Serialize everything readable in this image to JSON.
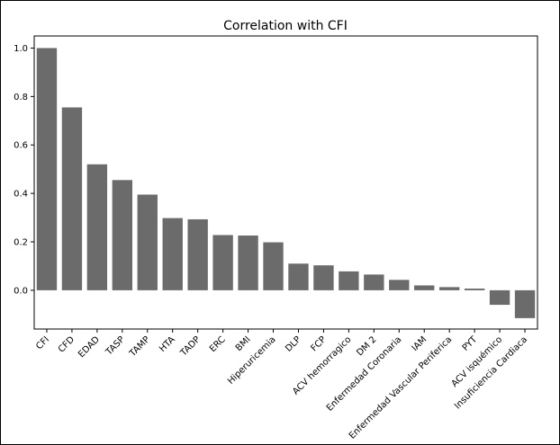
{
  "chart_data": {
    "type": "bar",
    "title": "Correlation with CFI",
    "xlabel": "",
    "ylabel": "",
    "categories": [
      "CFI",
      "CFD",
      "EDAD",
      "TASP",
      "TAMP",
      "HTA",
      "TADP",
      "ERC",
      "BMI",
      "Hiperuricemia",
      "DLP",
      "FCP",
      "ACV hemorragico",
      "DM 2",
      "Enfermedad Coronaria",
      "IAM",
      "Enfermedad Vascular Periferica",
      "PYT",
      "ACV isquémico",
      "Insuficiencia Cardiaca"
    ],
    "values": [
      1.0,
      0.755,
      0.52,
      0.455,
      0.395,
      0.298,
      0.293,
      0.228,
      0.226,
      0.198,
      0.11,
      0.103,
      0.078,
      0.065,
      0.043,
      0.02,
      0.013,
      0.007,
      -0.06,
      -0.115
    ],
    "ylim": [
      -0.16,
      1.05
    ],
    "yticks": [
      "0.0",
      "0.2",
      "0.4",
      "0.6",
      "0.8",
      "1.0"
    ],
    "bar_color": "#6b6b6b",
    "grid": false,
    "legend": "none"
  }
}
